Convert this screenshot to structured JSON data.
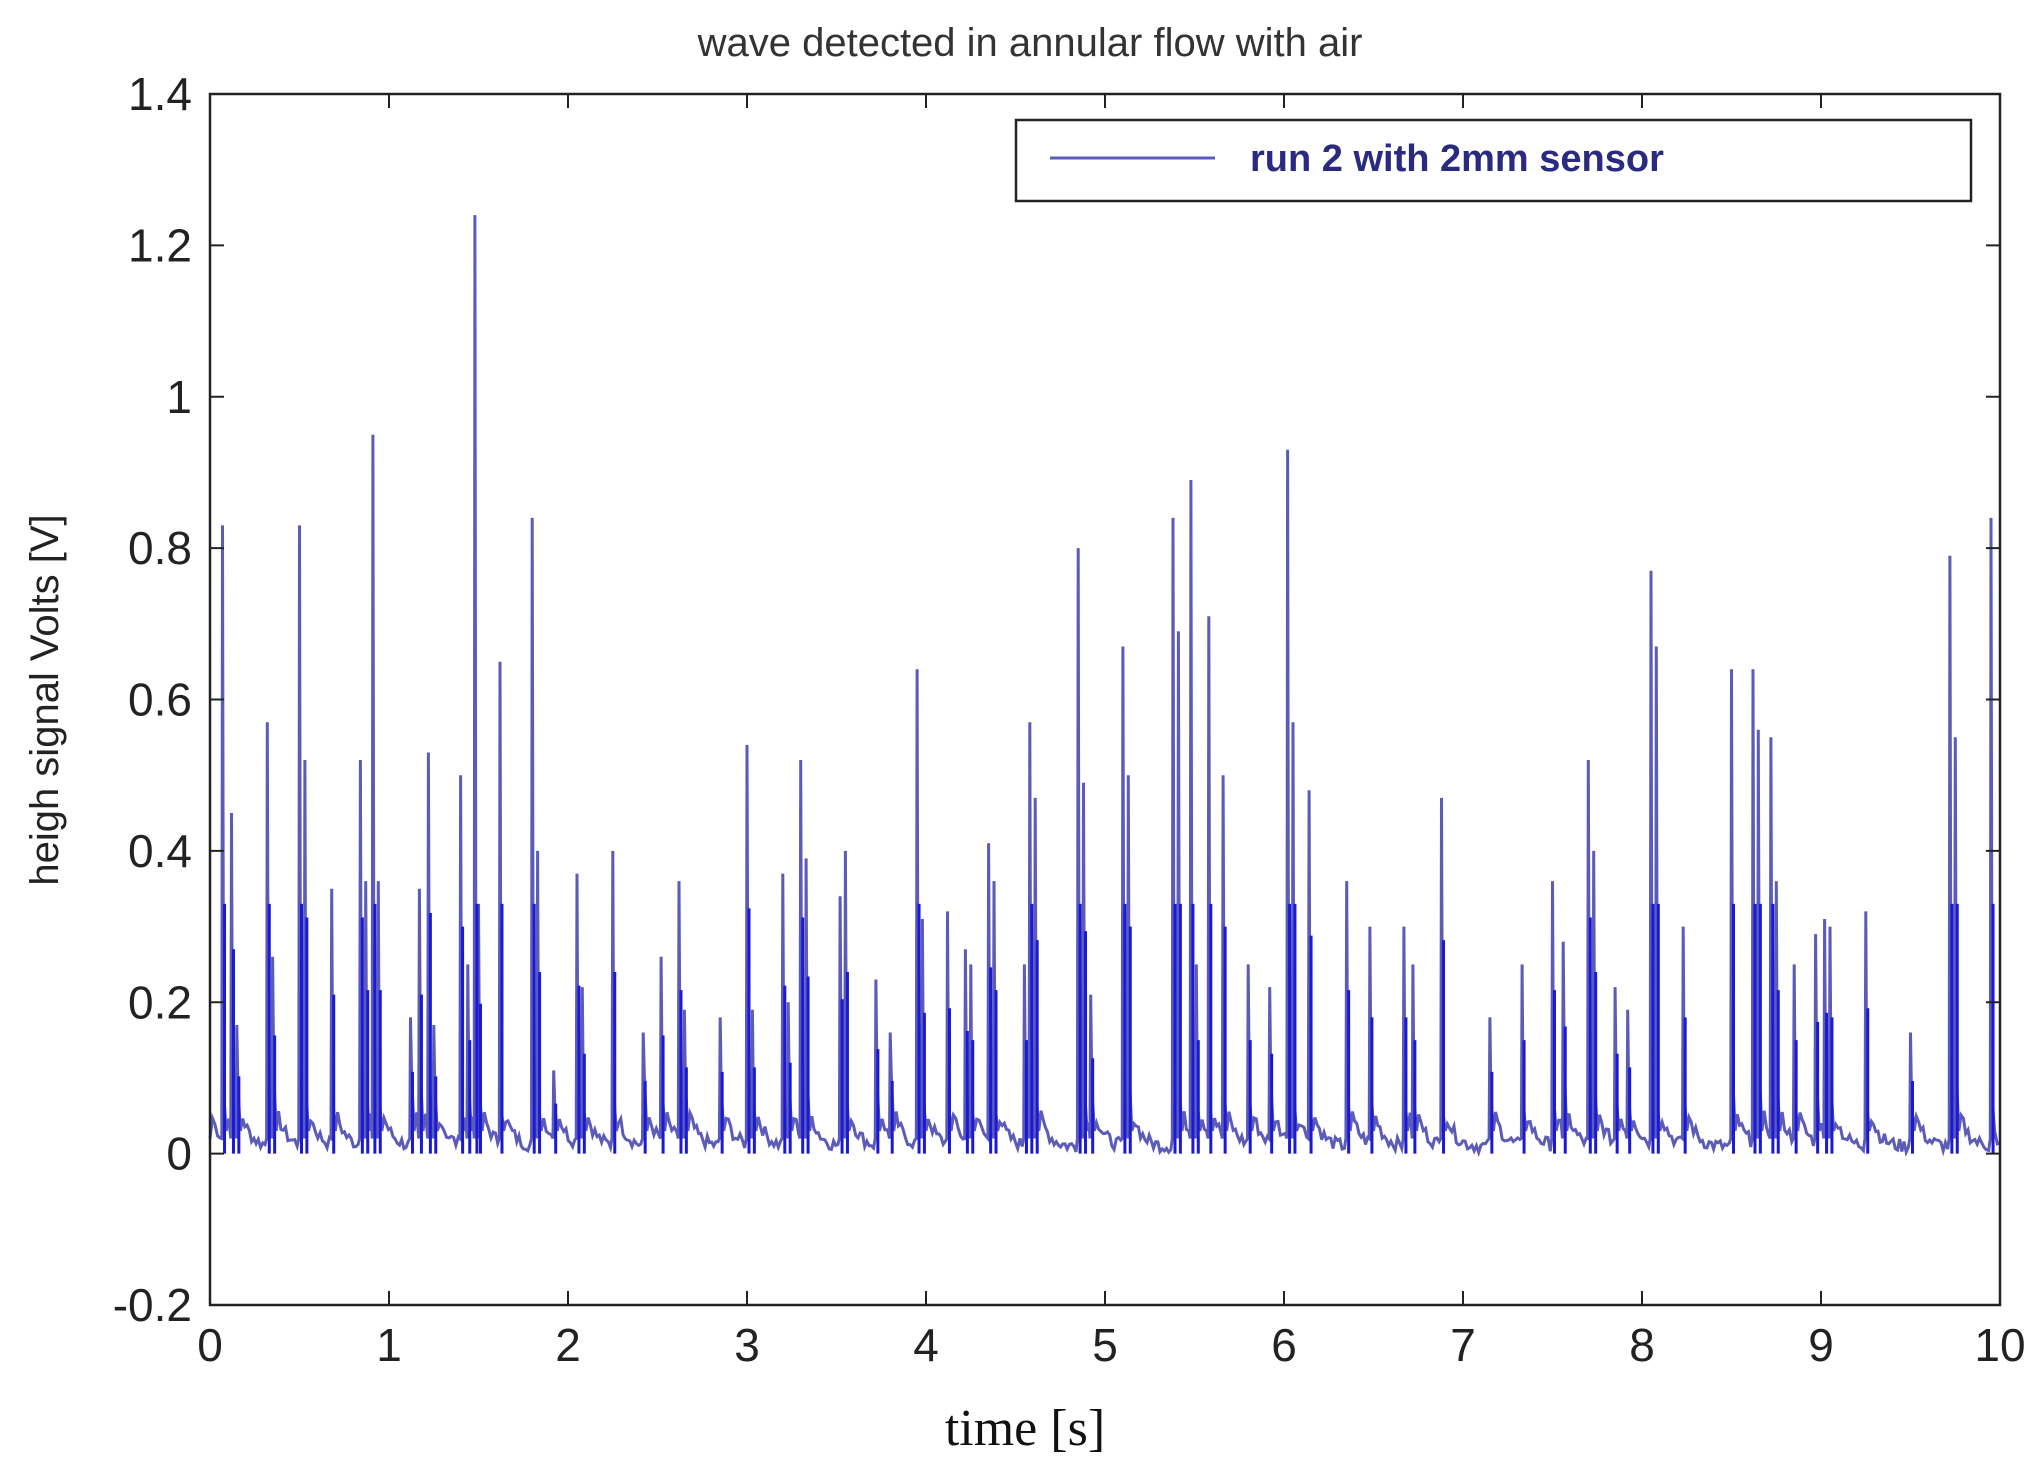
{
  "chart_data": {
    "type": "line",
    "title": "wave detected in annular flow with air",
    "xlabel": "time [s]",
    "ylabel": "heigh signal Volts [V]",
    "xlim": [
      0,
      10
    ],
    "ylim": [
      -0.2,
      1.4
    ],
    "xticks": [
      "0",
      "1",
      "2",
      "3",
      "4",
      "5",
      "6",
      "7",
      "8",
      "9",
      "10"
    ],
    "yticks": [
      "-0.2",
      "0",
      "0.2",
      "0.4",
      "0.6",
      "0.8",
      "1",
      "1.2",
      "1.4"
    ],
    "grid": false,
    "legend": {
      "position": "top-right",
      "entries": [
        "run 2 with 2mm sensor"
      ]
    },
    "baseline": 0.0,
    "series": [
      {
        "name": "run 2 with 2mm sensor",
        "color": "#5c5cb8",
        "accent_color": "#1a1ad6",
        "peaks": [
          [
            0.07,
            0.83
          ],
          [
            0.12,
            0.45
          ],
          [
            0.15,
            0.17
          ],
          [
            0.32,
            0.57
          ],
          [
            0.35,
            0.26
          ],
          [
            0.5,
            0.83
          ],
          [
            0.53,
            0.52
          ],
          [
            0.68,
            0.35
          ],
          [
            0.84,
            0.52
          ],
          [
            0.87,
            0.36
          ],
          [
            0.91,
            0.95
          ],
          [
            0.94,
            0.36
          ],
          [
            1.12,
            0.18
          ],
          [
            1.17,
            0.35
          ],
          [
            1.22,
            0.53
          ],
          [
            1.25,
            0.17
          ],
          [
            1.4,
            0.5
          ],
          [
            1.44,
            0.25
          ],
          [
            1.48,
            1.24
          ],
          [
            1.5,
            0.33
          ],
          [
            1.62,
            0.65
          ],
          [
            1.8,
            0.84
          ],
          [
            1.83,
            0.4
          ],
          [
            1.92,
            0.11
          ],
          [
            2.05,
            0.37
          ],
          [
            2.08,
            0.22
          ],
          [
            2.25,
            0.4
          ],
          [
            2.42,
            0.16
          ],
          [
            2.52,
            0.26
          ],
          [
            2.62,
            0.36
          ],
          [
            2.65,
            0.19
          ],
          [
            2.85,
            0.18
          ],
          [
            3.0,
            0.54
          ],
          [
            3.03,
            0.19
          ],
          [
            3.2,
            0.37
          ],
          [
            3.23,
            0.2
          ],
          [
            3.3,
            0.52
          ],
          [
            3.33,
            0.39
          ],
          [
            3.52,
            0.34
          ],
          [
            3.55,
            0.4
          ],
          [
            3.72,
            0.23
          ],
          [
            3.8,
            0.16
          ],
          [
            3.95,
            0.64
          ],
          [
            3.98,
            0.31
          ],
          [
            4.12,
            0.32
          ],
          [
            4.22,
            0.27
          ],
          [
            4.25,
            0.25
          ],
          [
            4.35,
            0.41
          ],
          [
            4.38,
            0.36
          ],
          [
            4.55,
            0.25
          ],
          [
            4.58,
            0.57
          ],
          [
            4.61,
            0.47
          ],
          [
            4.85,
            0.8
          ],
          [
            4.88,
            0.49
          ],
          [
            4.92,
            0.21
          ],
          [
            5.1,
            0.67
          ],
          [
            5.13,
            0.5
          ],
          [
            5.38,
            0.84
          ],
          [
            5.41,
            0.69
          ],
          [
            5.48,
            0.89
          ],
          [
            5.51,
            0.25
          ],
          [
            5.58,
            0.71
          ],
          [
            5.66,
            0.5
          ],
          [
            5.8,
            0.25
          ],
          [
            5.92,
            0.22
          ],
          [
            6.02,
            0.93
          ],
          [
            6.05,
            0.57
          ],
          [
            6.14,
            0.48
          ],
          [
            6.35,
            0.36
          ],
          [
            6.48,
            0.3
          ],
          [
            6.67,
            0.3
          ],
          [
            6.72,
            0.25
          ],
          [
            6.88,
            0.47
          ],
          [
            7.15,
            0.18
          ],
          [
            7.33,
            0.25
          ],
          [
            7.5,
            0.36
          ],
          [
            7.56,
            0.28
          ],
          [
            7.7,
            0.52
          ],
          [
            7.73,
            0.4
          ],
          [
            7.85,
            0.22
          ],
          [
            7.92,
            0.19
          ],
          [
            8.05,
            0.77
          ],
          [
            8.08,
            0.67
          ],
          [
            8.23,
            0.3
          ],
          [
            8.5,
            0.64
          ],
          [
            8.62,
            0.64
          ],
          [
            8.65,
            0.56
          ],
          [
            8.72,
            0.55
          ],
          [
            8.75,
            0.36
          ],
          [
            8.85,
            0.25
          ],
          [
            8.97,
            0.29
          ],
          [
            9.02,
            0.31
          ],
          [
            9.05,
            0.3
          ],
          [
            9.25,
            0.32
          ],
          [
            9.5,
            0.16
          ],
          [
            9.72,
            0.79
          ],
          [
            9.75,
            0.55
          ],
          [
            9.95,
            0.84
          ]
        ]
      }
    ]
  }
}
